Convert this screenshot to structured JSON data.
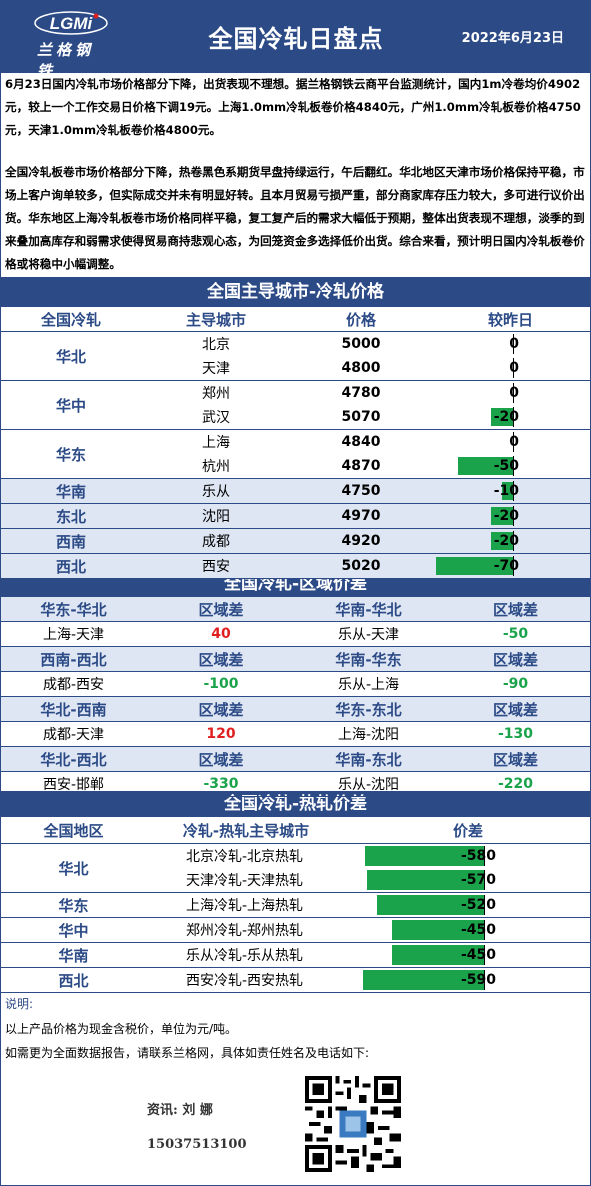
{
  "header": {
    "logo_mark": "LGMi",
    "logo_cn": "兰格钢铁",
    "title": "全国冷轧日盘点",
    "date": "2022年6月23日"
  },
  "summary": {
    "para1": "6月23日国内冷轧市场价格部分下降，出货表现不理想。据兰格钢铁云商平台监测统计，国内1m冷卷均价4902元，较上一个工作交易日价格下调19元。上海1.0mm冷轧板卷价格4840元，广州1.0mm冷轧板卷价格4750元，天津1.0mm冷轧板卷价格4800元。",
    "para2": "全国冷轧板卷市场价格部分下降，热卷黑色系期货早盘持绿运行，午后翻红。华北地区天津市场价格保持平稳，市场上客户询单较多，但实际成交并未有明显好转。且本月贸易亏损严重，部分商家库存压力较大，多可进行议价出货。华东地区上海冷轧板卷市场价格同样平稳，复工复产后的需求大幅低于预期，整体出货表现不理想，淡季的到来叠加高库存和弱需求使得贸易商持悲观心态，为回笼资金多选择低价出货。综合来看，预计明日国内冷轧板卷价格或将稳中小幅调整。"
  },
  "prices": {
    "title": "全国主导城市-冷轧价格",
    "headers": [
      "全国冷轧",
      "主导城市",
      "价格",
      "较昨日"
    ],
    "groups": [
      {
        "region": "华北",
        "rows": [
          {
            "city": "北京",
            "price": "5000",
            "change": 0
          },
          {
            "city": "天津",
            "price": "4800",
            "change": 0
          }
        ]
      },
      {
        "region": "华中",
        "rows": [
          {
            "city": "郑州",
            "price": "4780",
            "change": 0
          },
          {
            "city": "武汉",
            "price": "5070",
            "change": -20
          }
        ]
      },
      {
        "region": "华东",
        "rows": [
          {
            "city": "上海",
            "price": "4840",
            "change": 0
          },
          {
            "city": "杭州",
            "price": "4870",
            "change": -50
          }
        ]
      },
      {
        "region": "华南",
        "rows": [
          {
            "city": "乐从",
            "price": "4750",
            "change": -10
          }
        ]
      },
      {
        "region": "东北",
        "rows": [
          {
            "city": "沈阳",
            "price": "4970",
            "change": -20
          }
        ]
      },
      {
        "region": "西南",
        "rows": [
          {
            "city": "成都",
            "price": "4920",
            "change": -20
          }
        ]
      },
      {
        "region": "西北",
        "rows": [
          {
            "city": "西安",
            "price": "5020",
            "change": -70
          }
        ]
      }
    ]
  },
  "spreads": {
    "title": "全国冷轧-区域价差",
    "blocks": [
      {
        "left_head": "华东-华北",
        "left_col": "区域差",
        "right_head": "华南-华北",
        "right_col": "区域差",
        "left_pair": "上海-天津",
        "left_val": "40",
        "left_color": "#e02020",
        "right_pair": "乐从-天津",
        "right_val": "-50",
        "right_color": "#1aa34a"
      },
      {
        "left_head": "西南-西北",
        "left_col": "区域差",
        "right_head": "华南-华东",
        "right_col": "区域差",
        "left_pair": "成都-西安",
        "left_val": "-100",
        "left_color": "#1aa34a",
        "right_pair": "乐从-上海",
        "right_val": "-90",
        "right_color": "#1aa34a"
      },
      {
        "left_head": "华北-西南",
        "left_col": "区域差",
        "right_head": "华东-东北",
        "right_col": "区域差",
        "left_pair": "成都-天津",
        "left_val": "120",
        "left_color": "#e02020",
        "right_pair": "上海-沈阳",
        "right_val": "-130",
        "right_color": "#1aa34a"
      },
      {
        "left_head": "华北-西北",
        "left_col": "区域差",
        "right_head": "华南-东北",
        "right_col": "区域差",
        "left_pair": "西安-邯郸",
        "left_val": "-330",
        "left_color": "#1aa34a",
        "right_pair": "乐从-沈阳",
        "right_val": "-220",
        "right_color": "#1aa34a"
      }
    ]
  },
  "hot_spread": {
    "title": "全国冷轧-热轧价差",
    "headers": [
      "全国地区",
      "冷轧-热轧主导城市",
      "价差"
    ],
    "groups": [
      {
        "region": "华北",
        "rows": [
          {
            "pair": "北京冷轧-北京热轧",
            "value": -580
          },
          {
            "pair": "天津冷轧-天津热轧",
            "value": -570
          }
        ]
      },
      {
        "region": "华东",
        "rows": [
          {
            "pair": "上海冷轧-上海热轧",
            "value": -520
          }
        ]
      },
      {
        "region": "华中",
        "rows": [
          {
            "pair": "郑州冷轧-郑州热轧",
            "value": -450
          }
        ]
      },
      {
        "region": "华南",
        "rows": [
          {
            "pair": "乐从冷轧-乐从热轧",
            "value": -450
          }
        ]
      },
      {
        "region": "西北",
        "rows": [
          {
            "pair": "西安冷轧-西安热轧",
            "value": -590
          }
        ]
      }
    ]
  },
  "notes": {
    "title": "说明:",
    "line1": "以上产品价格为现金含税价，单位为元/吨。",
    "line2": "如需更为全面数据报告，请联系兰格网，具体如责任姓名及电话如下:",
    "contact_label": "资讯: 刘 娜",
    "phone": "15037513100"
  },
  "colors": {
    "brand": "#2b4a86",
    "band": "#dfe6f3",
    "bar": "#1aa34a",
    "up": "#e02020",
    "down": "#1aa34a"
  }
}
